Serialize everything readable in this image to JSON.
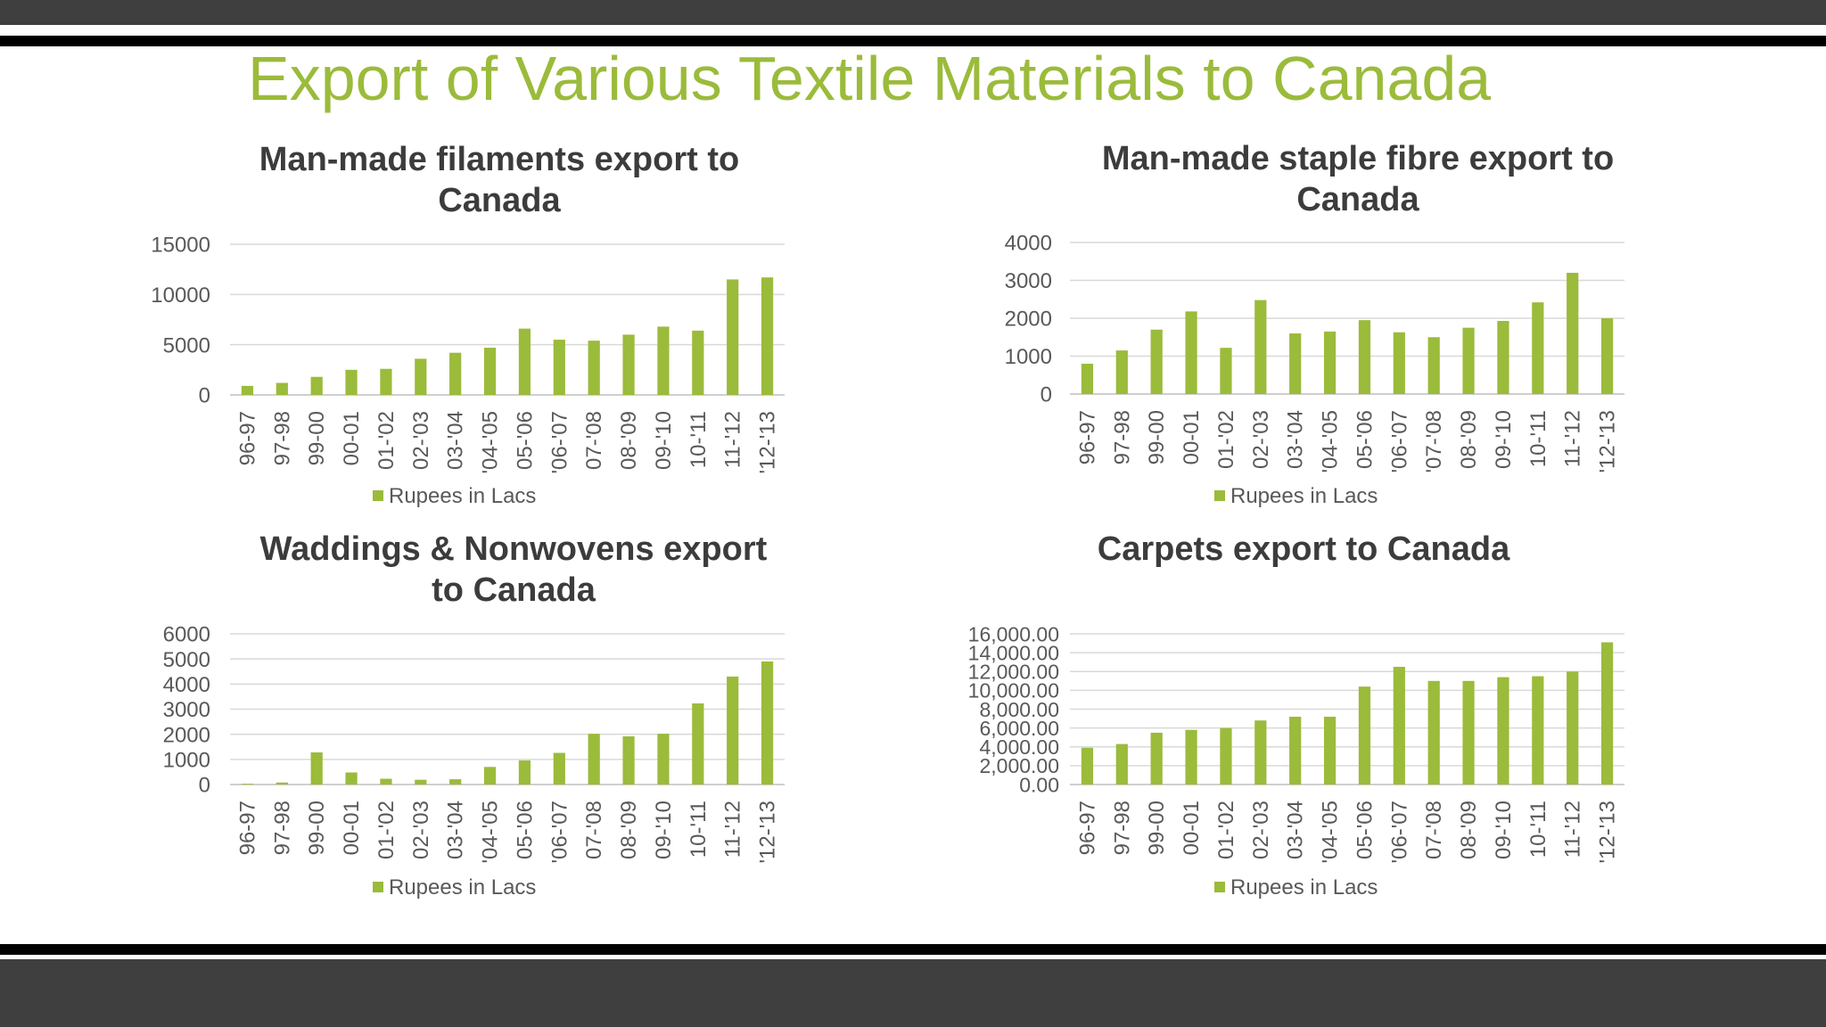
{
  "slide": {
    "title": "Export of Various Textile Materials to Canada"
  },
  "colors": {
    "bar": "#9bbb3b",
    "band": "#3f3f40",
    "title": "#9bbb3b",
    "chart_title": "#3c3c3c",
    "text": "#595959",
    "grid": "#d9d9d9"
  },
  "chart_data": [
    {
      "type": "bar",
      "title": "Man-made filaments export to Canada",
      "title_lines": [
        "Man-made filaments export to",
        "Canada"
      ],
      "categories": [
        "96-97",
        "97-98",
        "99-00",
        "00-01",
        "01-'02",
        "02-'03",
        "03-'04",
        "'04-'05",
        "05-'06",
        "'06-'07",
        "07-'08",
        "08-'09",
        "09-'10",
        "10-'11",
        "11-'12",
        "'12-'13"
      ],
      "series": [
        {
          "name": "Rupees in Lacs",
          "values": [
            900,
            1200,
            1800,
            2500,
            2600,
            3600,
            4200,
            4700,
            6600,
            5500,
            5400,
            6000,
            6800,
            6400,
            11500,
            11700
          ]
        }
      ],
      "yticks": [
        "0",
        "5000",
        "10000",
        "15000"
      ],
      "ylim": [
        0,
        15000
      ],
      "legend": "bottom",
      "grid": true
    },
    {
      "type": "bar",
      "title": "Man-made staple fibre export to Canada",
      "title_lines": [
        "Man-made staple fibre export to",
        "Canada"
      ],
      "categories": [
        "96-97",
        "97-98",
        "99-00",
        "00-01",
        "01-'02",
        "02-'03",
        "03-'04",
        "'04-'05",
        "05-'06",
        "'06-'07",
        "'07-'08",
        "08-'09",
        "09-'10",
        "10-'11",
        "11-'12",
        "'12-'13"
      ],
      "series": [
        {
          "name": "Rupees in Lacs",
          "values": [
            800,
            1150,
            1700,
            2180,
            1220,
            2480,
            1600,
            1650,
            1950,
            1630,
            1500,
            1750,
            1930,
            2420,
            3200,
            2000
          ]
        }
      ],
      "yticks": [
        "0",
        "1000",
        "2000",
        "3000",
        "4000"
      ],
      "ylim": [
        0,
        4000
      ],
      "legend": "bottom",
      "grid": true
    },
    {
      "type": "bar",
      "title": "Waddings & Nonwovens export to Canada",
      "title_lines": [
        "Waddings & Nonwovens export",
        "to Canada"
      ],
      "categories": [
        "96-97",
        "97-98",
        "99-00",
        "00-01",
        "01-'02",
        "02-'03",
        "03-'04",
        "'04-'05",
        "05-'06",
        "'06-'07",
        "07-'08",
        "08-'09",
        "09-'10",
        "10-'11",
        "11-'12",
        "'12-'13"
      ],
      "series": [
        {
          "name": "Rupees in Lacs",
          "values": [
            30,
            80,
            1280,
            480,
            230,
            190,
            210,
            700,
            960,
            1260,
            2020,
            1920,
            2020,
            3230,
            4300,
            4900
          ]
        }
      ],
      "yticks": [
        "0",
        "1000",
        "2000",
        "3000",
        "4000",
        "5000",
        "6000"
      ],
      "ylim": [
        0,
        6000
      ],
      "legend": "bottom",
      "grid": true
    },
    {
      "type": "bar",
      "title": "Carpets export to Canada",
      "title_lines": [
        "Carpets export to Canada"
      ],
      "categories": [
        "96-97",
        "97-98",
        "99-00",
        "00-01",
        "01-'02",
        "02-'03",
        "03-'04",
        "'04-'05",
        "05-'06",
        "'06-'07",
        "07-'08",
        "08-'09",
        "09-'10",
        "10-'11",
        "11-'12",
        "'12-'13"
      ],
      "series": [
        {
          "name": "Rupees in Lacs",
          "values": [
            3900,
            4300,
            5500,
            5800,
            6000,
            6800,
            7200,
            7200,
            10400,
            12500,
            11000,
            11000,
            11400,
            11500,
            12000,
            15100
          ]
        }
      ],
      "yticks": [
        "0.00",
        "2,000.00",
        "4,000.00",
        "6,000.00",
        "8,000.00",
        "10,000.00",
        "12,000.00",
        "14,000.00",
        "16,000.00"
      ],
      "ylim": [
        0,
        16000
      ],
      "legend": "bottom",
      "grid": true
    }
  ]
}
